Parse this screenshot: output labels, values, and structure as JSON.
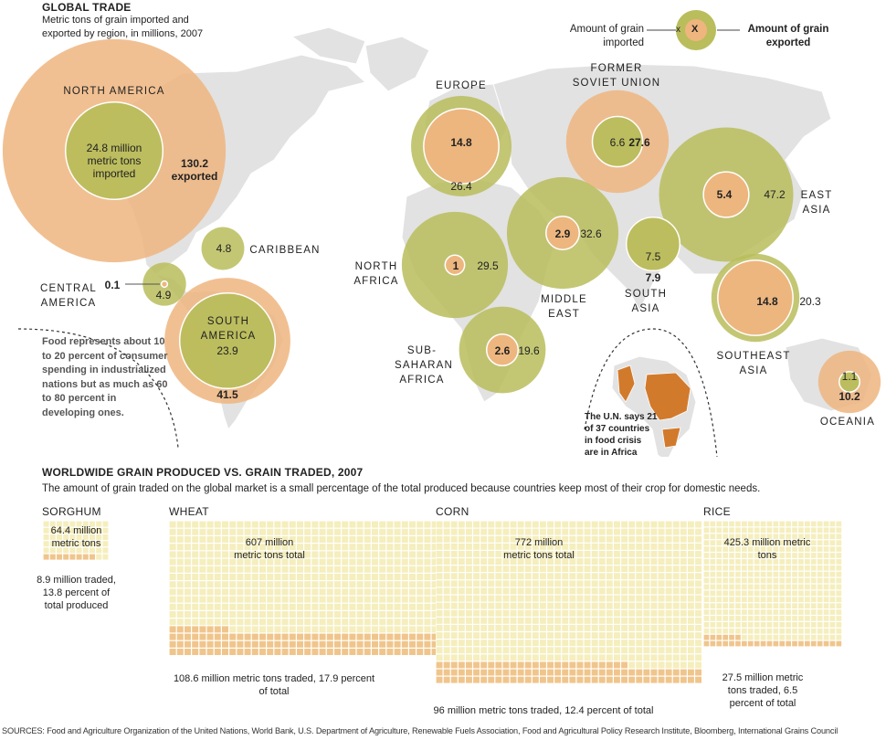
{
  "colors": {
    "imported": "#b9bd5c",
    "exported": "#efb57f",
    "map": "#e2e2e2",
    "africa_crisis": "#d27a2c",
    "grid_fill": "#f5eebd",
    "grid_traded": "#f0c58c"
  },
  "header": {
    "title": "GLOBAL TRADE",
    "subtitle_line1": "Metric tons of grain imported and",
    "subtitle_line2": "exported by region, in millions, 2007"
  },
  "legend": {
    "imported_line1": "Amount of grain",
    "imported_line2": "imported",
    "imported_symbol": "x",
    "exported_symbol": "X",
    "exported_line1": "Amount of grain",
    "exported_line2": "exported"
  },
  "note_food": "Food represents about 10 to 20 percent of consumer spending in industrialized nations but as much as 60 to 80 percent in developing ones.",
  "note_africa": "The U.N. says 21 of 37 countries in food crisis are in Africa",
  "chart_data": [
    {
      "type": "bubble",
      "title": "GLOBAL TRADE",
      "subtitle": "Metric tons of grain imported and exported by region, in millions, 2007",
      "series": [
        {
          "name": "Amount of grain imported"
        },
        {
          "name": "Amount of grain exported"
        }
      ],
      "regions": [
        {
          "id": "north-america",
          "name": "NORTH AMERICA",
          "imported": 24.8,
          "exported": 130.2,
          "imported_label": "24.8 million metric tons imported",
          "exported_label": "130.2 exported"
        },
        {
          "id": "caribbean",
          "name": "CARIBBEAN",
          "imported": 4.8,
          "exported": null,
          "imported_label": "4.8"
        },
        {
          "id": "central-america",
          "name": "CENTRAL AMERICA",
          "imported": 4.9,
          "exported": 0.1,
          "imported_label": "4.9",
          "exported_label": "0.1"
        },
        {
          "id": "south-america",
          "name": "SOUTH AMERICA",
          "imported": 23.9,
          "exported": 41.5,
          "imported_label": "23.9",
          "exported_label": "41.5"
        },
        {
          "id": "europe",
          "name": "EUROPE",
          "imported": 26.4,
          "exported": 14.8,
          "imported_label": "26.4",
          "exported_label": "14.8"
        },
        {
          "id": "former-soviet-union",
          "name": "FORMER SOVIET UNION",
          "imported": 6.6,
          "exported": 27.6,
          "imported_label": "6.6",
          "exported_label": "27.6"
        },
        {
          "id": "east-asia",
          "name": "EAST ASIA",
          "imported": 47.2,
          "exported": 5.4,
          "imported_label": "47.2",
          "exported_label": "5.4"
        },
        {
          "id": "middle-east",
          "name": "MIDDLE EAST",
          "imported": 32.6,
          "exported": 2.9,
          "imported_label": "32.6",
          "exported_label": "2.9"
        },
        {
          "id": "north-africa",
          "name": "NORTH AFRICA",
          "imported": 29.5,
          "exported": 1,
          "imported_label": "29.5",
          "exported_label": "1"
        },
        {
          "id": "south-asia",
          "name": "SOUTH ASIA",
          "imported": 7.5,
          "exported": 7.9,
          "imported_label": "7.5",
          "exported_label": "7.9"
        },
        {
          "id": "sub-saharan-africa",
          "name": "SUB-SAHARAN AFRICA",
          "imported": 19.6,
          "exported": 2.6,
          "imported_label": "19.6",
          "exported_label": "2.6"
        },
        {
          "id": "southeast-asia",
          "name": "SOUTHEAST ASIA",
          "imported": 20.3,
          "exported": 14.8,
          "imported_label": "20.3",
          "exported_label": "14.8"
        },
        {
          "id": "oceania",
          "name": "OCEANIA",
          "imported": 1.1,
          "exported": 10.2,
          "imported_label": "1.1",
          "exported_label": "10.2"
        }
      ]
    },
    {
      "type": "waffle",
      "title": "WORLDWIDE GRAIN PRODUCED VS. GRAIN TRADED, 2007",
      "subtitle": "The amount of grain traded on the global market is a small percentage of the total produced because countries keep most of their crop for domestic needs.",
      "grains": [
        {
          "id": "sorghum",
          "name": "SORGHUM",
          "total": 64.4,
          "traded": 8.9,
          "percent_traded": 13.8,
          "total_label": "64.4 million metric tons",
          "traded_label": "8.9 million traded, 13.8 percent of total produced"
        },
        {
          "id": "wheat",
          "name": "WHEAT",
          "total": 607,
          "traded": 108.6,
          "percent_traded": 17.9,
          "total_label": "607 million metric tons total",
          "traded_label": "108.6 million metric tons traded, 17.9 percent of total"
        },
        {
          "id": "corn",
          "name": "CORN",
          "total": 772,
          "traded": 96,
          "percent_traded": 12.4,
          "total_label": "772 million metric tons total",
          "traded_label": "96 million metric tons traded, 12.4 percent of total"
        },
        {
          "id": "rice",
          "name": "RICE",
          "total": 425.3,
          "traded": 27.5,
          "percent_traded": 6.5,
          "total_label": "425.3 million metric tons",
          "traded_label": "27.5 million metric tons traded, 6.5 percent of total"
        }
      ]
    }
  ],
  "sources": "SOURCES: Food and Agriculture Organization of the United Nations, World Bank, U.S. Department of Agriculture, Renewable Fuels Association, Food and Agricultural Policy Research Institute, Bloomberg, International Grains Council"
}
